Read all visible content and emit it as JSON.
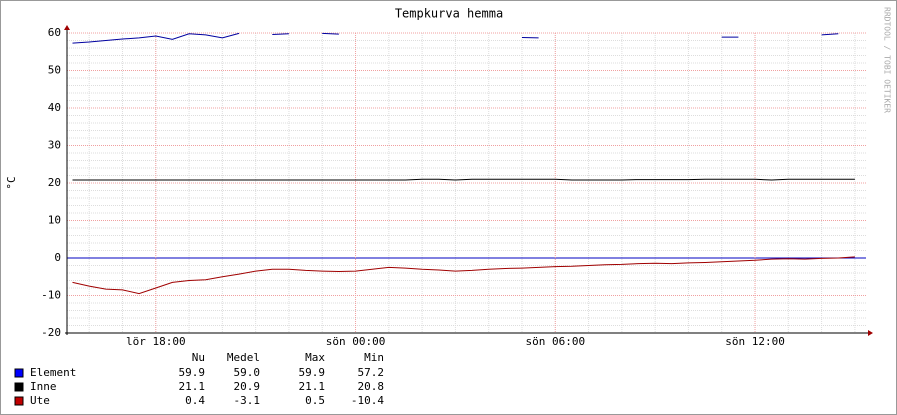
{
  "chart_data": {
    "type": "line",
    "title": "Tempkurva hemma",
    "y_label": "°C",
    "watermark": "RRDTOOL / TOBI OETIKER",
    "x": [
      "lör 15:30",
      "lör 16:00",
      "lör 16:30",
      "lör 17:00",
      "lör 17:30",
      "lör 18:00",
      "lör 18:30",
      "lör 19:00",
      "lör 19:30",
      "lör 20:00",
      "lör 20:30",
      "lör 21:00",
      "lör 21:30",
      "lör 22:00",
      "lör 22:30",
      "lör 23:00",
      "lör 23:30",
      "sön 00:00",
      "sön 00:30",
      "sön 01:00",
      "sön 01:30",
      "sön 02:00",
      "sön 02:30",
      "sön 03:00",
      "sön 03:30",
      "sön 04:00",
      "sön 04:30",
      "sön 05:00",
      "sön 05:30",
      "sön 06:00",
      "sön 06:30",
      "sön 07:00",
      "sön 07:30",
      "sön 08:00",
      "sön 08:30",
      "sön 09:00",
      "sön 09:30",
      "sön 10:00",
      "sön 10:30",
      "sön 11:00",
      "sön 11:30",
      "sön 12:00",
      "sön 12:30",
      "sön 13:00",
      "sön 13:30",
      "sön 14:00",
      "sön 14:30",
      "sön 15:00"
    ],
    "xlim": [
      "lör 15:20",
      "sön 15:20"
    ],
    "xticks": [
      "lör 18:00",
      "sön 00:00",
      "sön 06:00",
      "sön 12:00"
    ],
    "ylim": [
      -20,
      60
    ],
    "yticks": [
      -20,
      -10,
      0,
      10,
      20,
      30,
      40,
      50,
      60
    ],
    "grid": true,
    "minor_grid": true,
    "series": [
      {
        "name": "Element",
        "color": "#0000a0",
        "box_color": "#0000ff",
        "values": [
          57.3,
          57.6,
          58.0,
          58.4,
          58.7,
          59.2,
          58.3,
          59.8,
          59.5,
          58.7,
          59.9,
          null,
          59.6,
          59.8,
          null,
          59.9,
          59.7,
          null,
          null,
          null,
          null,
          null,
          null,
          null,
          null,
          null,
          null,
          58.8,
          58.7,
          null,
          null,
          null,
          null,
          null,
          null,
          null,
          null,
          null,
          null,
          58.9,
          58.9,
          null,
          58.8,
          null,
          null,
          59.5,
          59.8,
          null
        ],
        "stats": [
          59.9,
          {
            "value": 59.0,
            "label": "59.0"
          },
          59.9,
          57.2
        ]
      },
      {
        "name": "Inne",
        "color": "#000000",
        "box_color": "#000000",
        "values": [
          20.8,
          20.8,
          20.8,
          20.8,
          20.8,
          20.8,
          20.8,
          20.8,
          20.8,
          20.8,
          20.8,
          20.8,
          20.8,
          20.8,
          20.8,
          20.8,
          20.8,
          20.8,
          20.8,
          20.8,
          20.8,
          21.0,
          21.0,
          20.8,
          21.0,
          21.0,
          21.0,
          21.0,
          21.0,
          21.0,
          20.8,
          20.8,
          20.8,
          20.8,
          20.9,
          20.9,
          20.9,
          20.9,
          21.0,
          21.0,
          21.0,
          21.0,
          20.8,
          21.0,
          21.0,
          21.0,
          21.0,
          21.0
        ],
        "stats": [
          21.1,
          20.9,
          21.1,
          20.8
        ]
      },
      {
        "name": "Ute",
        "color": "#a00000",
        "box_color": "#c00000",
        "values": [
          -6.5,
          -7.5,
          -8.3,
          -8.5,
          -9.5,
          -8.0,
          -6.5,
          -6.0,
          -5.8,
          -5.0,
          -4.3,
          -3.5,
          -3.0,
          -3.0,
          -3.3,
          -3.5,
          -3.6,
          -3.5,
          -3.0,
          -2.5,
          -2.7,
          -3.0,
          -3.2,
          -3.5,
          -3.3,
          -3.0,
          -2.8,
          -2.7,
          -2.5,
          -2.3,
          -2.2,
          -2.0,
          -1.8,
          -1.7,
          -1.5,
          -1.4,
          -1.5,
          -1.3,
          -1.2,
          -1.0,
          -0.8,
          -0.6,
          -0.3,
          -0.2,
          -0.3,
          -0.1,
          0.0,
          0.3
        ],
        "stats": [
          0.4,
          -3.1,
          0.5,
          -10.4
        ]
      }
    ],
    "stat_headers": [
      "Nu",
      "Medel",
      "Max",
      "Min"
    ]
  }
}
